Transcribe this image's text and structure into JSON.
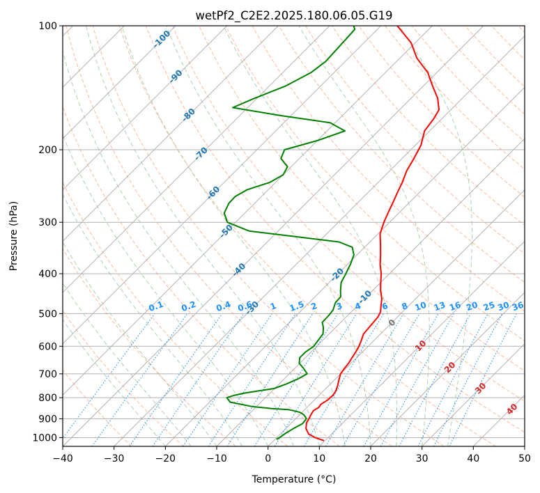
{
  "chart_data": {
    "type": "line",
    "subtype": "skew-t log-p diagram",
    "title": "wetPf2_C2E2.2025.180.06.05.G19",
    "xlabel": "Temperature (°C)",
    "ylabel": "Pressure (hPa)",
    "xlim": [
      -40,
      50
    ],
    "ylim": [
      1050,
      100
    ],
    "y_scale": "log",
    "x_ticks": [
      "−40",
      "−30",
      "−20",
      "−10",
      "0",
      "10",
      "20",
      "30",
      "40",
      "50"
    ],
    "y_ticks": [
      "100",
      "200",
      "300",
      "400",
      "500",
      "600",
      "700",
      "800",
      "900",
      "1000"
    ],
    "grid": true,
    "colors": {
      "temperature": "#ff0000",
      "dewpoint": "#008000",
      "isotherm": "#aaaaaa",
      "dry_adiabat": "#ffa07a",
      "moist_adiabat": "#90c090",
      "mixing_ratio": "#1e90ff",
      "isotherm_label_cold": "#1f77b4",
      "isotherm_label_warm": "#d62728"
    },
    "series": [
      {
        "name": "Temperature",
        "color": "#ff0000",
        "points": [
          [
            1017,
            9.8
          ],
          [
            1000,
            7.5
          ],
          [
            980,
            5.5
          ],
          [
            950,
            3.9
          ],
          [
            920,
            2.9
          ],
          [
            900,
            2.6
          ],
          [
            880,
            2.2
          ],
          [
            860,
            1.9
          ],
          [
            845,
            2.3
          ],
          [
            830,
            2.1
          ],
          [
            810,
            2.6
          ],
          [
            790,
            2.7
          ],
          [
            770,
            2.4
          ],
          [
            750,
            1.8
          ],
          [
            725,
            0.9
          ],
          [
            700,
            0.0
          ],
          [
            680,
            -0.3
          ],
          [
            660,
            -0.5
          ],
          [
            640,
            -0.9
          ],
          [
            620,
            -1.3
          ],
          [
            600,
            -1.8
          ],
          [
            580,
            -2.5
          ],
          [
            560,
            -3.3
          ],
          [
            530,
            -3.6
          ],
          [
            510,
            -3.8
          ],
          [
            495,
            -4.3
          ],
          [
            480,
            -5.3
          ],
          [
            460,
            -6.6
          ],
          [
            440,
            -8.4
          ],
          [
            420,
            -10.0
          ],
          [
            400,
            -11.6
          ],
          [
            380,
            -13.6
          ],
          [
            360,
            -15.4
          ],
          [
            340,
            -17.4
          ],
          [
            320,
            -19.6
          ],
          [
            300,
            -21.1
          ],
          [
            285,
            -22.1
          ],
          [
            270,
            -23.1
          ],
          [
            255,
            -24.2
          ],
          [
            240,
            -25.3
          ],
          [
            225,
            -26.7
          ],
          [
            210,
            -27.7
          ],
          [
            195,
            -28.9
          ],
          [
            180,
            -31.0
          ],
          [
            168,
            -31.6
          ],
          [
            160,
            -32.3
          ],
          [
            150,
            -34.8
          ],
          [
            140,
            -38.2
          ],
          [
            130,
            -41.7
          ],
          [
            120,
            -46.6
          ],
          [
            110,
            -50.8
          ],
          [
            100,
            -56.8
          ]
        ]
      },
      {
        "name": "Dewpoint",
        "color": "#008000",
        "points": [
          [
            1010,
            0.3
          ],
          [
            995,
            0.6
          ],
          [
            975,
            0.9
          ],
          [
            950,
            1.5
          ],
          [
            925,
            2.3
          ],
          [
            900,
            2.1
          ],
          [
            890,
            1.5
          ],
          [
            880,
            0.8
          ],
          [
            870,
            -0.2
          ],
          [
            865,
            -1.0
          ],
          [
            855,
            -3.2
          ],
          [
            850,
            -6.7
          ],
          [
            840,
            -11.0
          ],
          [
            820,
            -16.0
          ],
          [
            800,
            -17.5
          ],
          [
            790,
            -16.6
          ],
          [
            780,
            -15.0
          ],
          [
            770,
            -12.6
          ],
          [
            760,
            -10.1
          ],
          [
            740,
            -8.5
          ],
          [
            720,
            -7.3
          ],
          [
            700,
            -6.5
          ],
          [
            680,
            -8.2
          ],
          [
            660,
            -10.1
          ],
          [
            640,
            -11.1
          ],
          [
            620,
            -11.1
          ],
          [
            600,
            -10.6
          ],
          [
            580,
            -10.9
          ],
          [
            560,
            -11.2
          ],
          [
            540,
            -12.4
          ],
          [
            525,
            -13.6
          ],
          [
            505,
            -13.7
          ],
          [
            490,
            -13.9
          ],
          [
            470,
            -14.9
          ],
          [
            455,
            -15.0
          ],
          [
            440,
            -16.2
          ],
          [
            420,
            -17.7
          ],
          [
            400,
            -18.5
          ],
          [
            380,
            -19.4
          ],
          [
            360,
            -20.6
          ],
          [
            345,
            -22.4
          ],
          [
            335,
            -26.0
          ],
          [
            325,
            -35.6
          ],
          [
            315,
            -45.7
          ],
          [
            300,
            -51.6
          ],
          [
            285,
            -54.0
          ],
          [
            270,
            -55.0
          ],
          [
            260,
            -55.1
          ],
          [
            250,
            -54.1
          ],
          [
            240,
            -51.1
          ],
          [
            230,
            -50.0
          ],
          [
            220,
            -50.7
          ],
          [
            210,
            -53.6
          ],
          [
            200,
            -54.6
          ],
          [
            190,
            -50.0
          ],
          [
            180,
            -46.5
          ],
          [
            172,
            -51.0
          ],
          [
            165,
            -62.4
          ],
          [
            158,
            -72.9
          ],
          [
            150,
            -70.5
          ],
          [
            140,
            -66.8
          ],
          [
            130,
            -64.5
          ],
          [
            122,
            -63.8
          ],
          [
            115,
            -64.0
          ],
          [
            108,
            -64.2
          ],
          [
            102,
            -64.4
          ],
          [
            100,
            -65.3
          ]
        ]
      }
    ],
    "isotherm_labels": [
      "-100",
      "-90",
      "-80",
      "-70",
      "-60",
      "-50",
      "-40",
      "-30",
      "-20",
      "-10",
      "0",
      "10",
      "20",
      "30",
      "40"
    ],
    "mixing_ratio_labels": [
      "0.1",
      "0.2",
      "0.4",
      "0.6",
      "1",
      "1.5",
      "2",
      "3",
      "4",
      "6",
      "8",
      "10",
      "13",
      "16",
      "20",
      "25",
      "30",
      "36"
    ]
  }
}
